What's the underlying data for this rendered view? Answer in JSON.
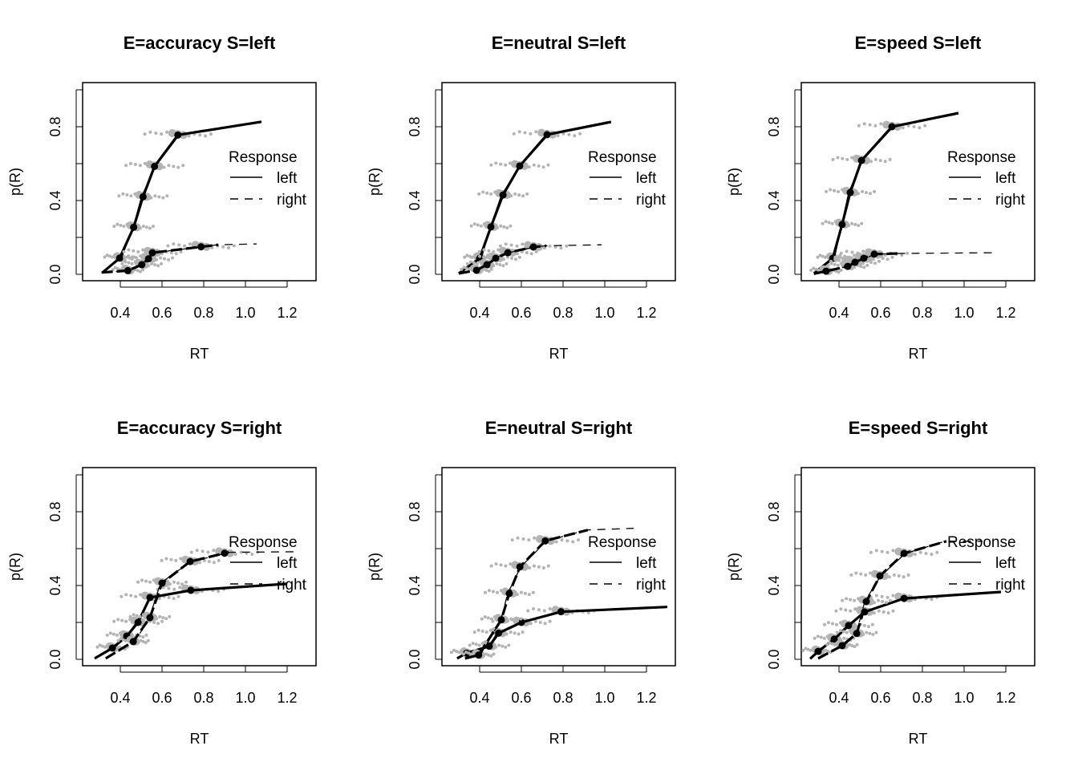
{
  "chart_data": {
    "type": "line",
    "xlabel": "RT",
    "ylabel": "p(R)",
    "xlim": [
      0.21,
      1.33
    ],
    "ylim": [
      -0.035,
      1.04
    ],
    "xticks": [
      "0.4",
      "0.6",
      "0.8",
      "1.0",
      "1.2"
    ],
    "xtick_values": [
      0.4,
      0.6,
      0.8,
      1.0,
      1.2
    ],
    "ytick_values": [
      0,
      0.2,
      0.4,
      0.6,
      0.8,
      1.0
    ],
    "ytick_labels": {
      "0": "0.0",
      "0.4": "0.4",
      "0.8": "0.8"
    },
    "legend": {
      "title": "Response",
      "entries": [
        {
          "label": "left",
          "line": "solid"
        },
        {
          "label": "right",
          "line": "dashed"
        }
      ],
      "placement": "right"
    },
    "colors": {
      "observed": "#000000",
      "predicted_points": "#b3b3b3"
    },
    "panels": [
      {
        "title": "E=accuracy S=left",
        "series": {
          "left": {
            "start": [
              0.315,
              0.01
            ],
            "x": [
              0.397,
              0.464,
              0.509,
              0.564,
              0.676
            ],
            "y": [
              0.088,
              0.255,
              0.42,
              0.585,
              0.755
            ],
            "end": [
              1.077,
              0.827
            ],
            "dash_end": null
          },
          "right": {
            "start": [
              0.31,
              0.01
            ],
            "x": [
              0.436,
              0.503,
              0.535,
              0.554,
              0.787
            ],
            "y": [
              0.02,
              0.052,
              0.084,
              0.117,
              0.149
            ],
            "end": [
              0.87,
              0.16
            ],
            "dash_end": [
              1.054,
              0.165
            ]
          }
        }
      },
      {
        "title": "E=neutral S=left",
        "series": {
          "left": {
            "start": [
              0.3,
              0.005
            ],
            "x": [
              0.4,
              0.454,
              0.512,
              0.592,
              0.723
            ],
            "y": [
              0.087,
              0.257,
              0.43,
              0.587,
              0.757
            ],
            "end": [
              1.03,
              0.826
            ],
            "dash_end": null
          },
          "right": {
            "start": [
              0.3,
              0.005
            ],
            "x": [
              0.385,
              0.435,
              0.477,
              0.535,
              0.658
            ],
            "y": [
              0.022,
              0.052,
              0.087,
              0.117,
              0.148
            ],
            "end": [
              0.72,
              0.155
            ],
            "dash_end": [
              0.985,
              0.16
            ]
          }
        }
      },
      {
        "title": "E=speed S=left",
        "series": {
          "left": {
            "start": [
              0.28,
              0.005
            ],
            "x": [
              0.37,
              0.415,
              0.454,
              0.508,
              0.654
            ],
            "y": [
              0.087,
              0.27,
              0.443,
              0.617,
              0.8
            ],
            "end": [
              0.973,
              0.874
            ],
            "dash_end": null
          },
          "right": {
            "start": [
              0.28,
              0.003
            ],
            "x": [
              0.338,
              0.442,
              0.477,
              0.519,
              0.569
            ],
            "y": [
              0.017,
              0.043,
              0.065,
              0.087,
              0.109
            ],
            "end": [
              0.68,
              0.113
            ],
            "dash_end": [
              1.146,
              0.117
            ]
          }
        }
      },
      {
        "title": "E=accuracy S=right",
        "series": {
          "left": {
            "start": [
              0.277,
              0.005
            ],
            "x": [
              0.362,
              0.431,
              0.485,
              0.542,
              0.738
            ],
            "y": [
              0.061,
              0.126,
              0.2,
              0.335,
              0.374
            ],
            "end": [
              1.2,
              0.409
            ],
            "dash_end": null
          },
          "right": {
            "start": [
              0.33,
              0.005
            ],
            "x": [
              0.462,
              0.542,
              0.6,
              0.735,
              0.9
            ],
            "y": [
              0.096,
              0.226,
              0.413,
              0.53,
              0.575
            ],
            "end": [
              0.92,
              0.58
            ],
            "dash_end": [
              1.246,
              0.583
            ]
          }
        }
      },
      {
        "title": "E=neutral S=right",
        "series": {
          "left": {
            "start": [
              0.292,
              0.005
            ],
            "x": [
              0.337,
              0.446,
              0.491,
              0.6,
              0.79
            ],
            "y": [
              0.033,
              0.071,
              0.142,
              0.2,
              0.258
            ],
            "end": [
              1.3,
              0.284
            ],
            "dash_end": null
          },
          "right": {
            "start": [
              0.33,
              0.005
            ],
            "x": [
              0.395,
              0.504,
              0.542,
              0.593,
              0.715
            ],
            "y": [
              0.023,
              0.214,
              0.357,
              0.501,
              0.642
            ],
            "end": [
              0.918,
              0.701
            ],
            "dash_end": [
              1.138,
              0.71
            ]
          }
        }
      },
      {
        "title": "E=speed S=right",
        "series": {
          "left": {
            "start": [
              0.262,
              0.003
            ],
            "x": [
              0.3,
              0.377,
              0.446,
              0.523,
              0.712
            ],
            "y": [
              0.043,
              0.109,
              0.183,
              0.257,
              0.33
            ],
            "end": [
              1.177,
              0.365
            ],
            "dash_end": null
          },
          "right": {
            "start": [
              0.3,
              0.005
            ],
            "x": [
              0.415,
              0.485,
              0.531,
              0.596,
              0.712
            ],
            "y": [
              0.074,
              0.14,
              0.313,
              0.452,
              0.574
            ],
            "end": [
              0.915,
              0.64
            ],
            "dash_end": [
              1.088,
              0.64
            ]
          }
        }
      }
    ]
  }
}
